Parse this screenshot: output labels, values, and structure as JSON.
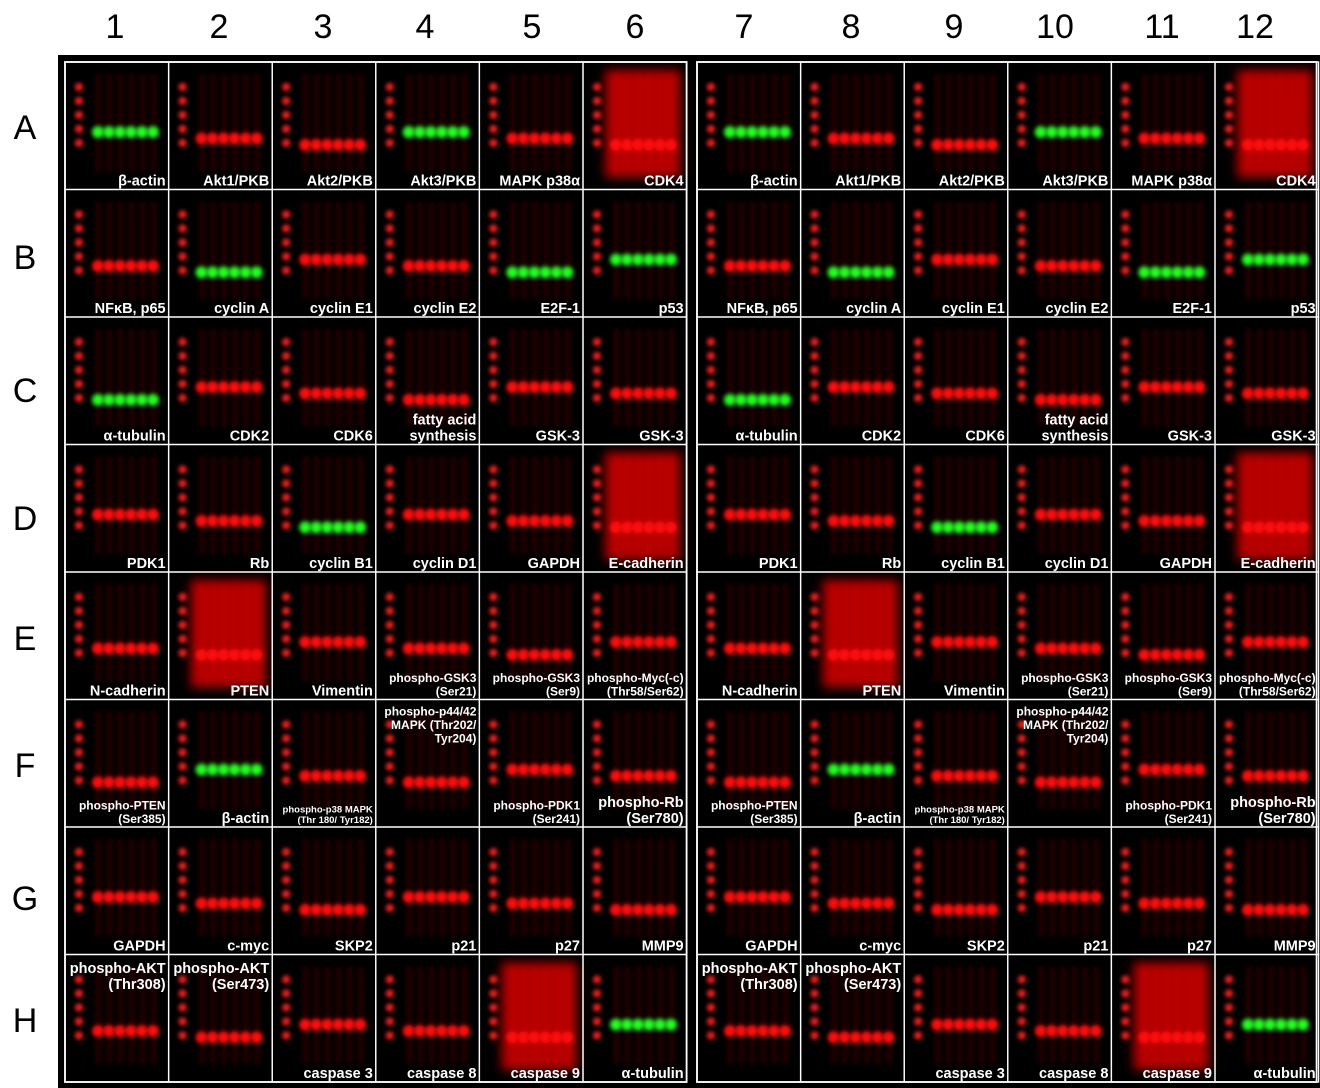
{
  "figure": {
    "columns": [
      "1",
      "2",
      "3",
      "4",
      "5",
      "6",
      "7",
      "8",
      "9",
      "10",
      "11",
      "12"
    ],
    "rows": [
      "A",
      "B",
      "C",
      "D",
      "E",
      "F",
      "G",
      "H"
    ],
    "cells": [
      [
        [
          "β-actin"
        ],
        [
          "Akt1/PKB"
        ],
        [
          "Akt2/PKB"
        ],
        [
          "Akt3/PKB"
        ],
        [
          "MAPK p38α"
        ],
        [
          "CDK4"
        ],
        [
          "β-actin"
        ],
        [
          "Akt1/PKB"
        ],
        [
          "Akt2/PKB"
        ],
        [
          "Akt3/PKB"
        ],
        [
          "MAPK p38α"
        ],
        [
          "CDK4"
        ]
      ],
      [
        [
          "NFκB, p65"
        ],
        [
          "cyclin A"
        ],
        [
          "cyclin E1"
        ],
        [
          "cyclin E2"
        ],
        [
          "E2F-1"
        ],
        [
          "p53"
        ],
        [
          "NFκB, p65"
        ],
        [
          "cyclin A"
        ],
        [
          "cyclin E1"
        ],
        [
          "cyclin E2"
        ],
        [
          "E2F-1"
        ],
        [
          "p53"
        ]
      ],
      [
        [
          "α-tubulin"
        ],
        [
          "CDK2"
        ],
        [
          "CDK6"
        ],
        [
          "fatty acid",
          "synthesis"
        ],
        [
          "GSK-3"
        ],
        [
          "GSK-3"
        ],
        [
          "α-tubulin"
        ],
        [
          "CDK2"
        ],
        [
          "CDK6"
        ],
        [
          "fatty acid",
          "synthesis"
        ],
        [
          "GSK-3"
        ],
        [
          "GSK-3"
        ]
      ],
      [
        [
          "PDK1"
        ],
        [
          "Rb"
        ],
        [
          "cyclin B1"
        ],
        [
          "cyclin D1"
        ],
        [
          "GAPDH"
        ],
        [
          "E-cadherin"
        ],
        [
          "PDK1"
        ],
        [
          "Rb"
        ],
        [
          "cyclin B1"
        ],
        [
          "cyclin D1"
        ],
        [
          "GAPDH"
        ],
        [
          "E-cadherin"
        ]
      ],
      [
        [
          "N-cadherin"
        ],
        [
          "PTEN"
        ],
        [
          "Vimentin"
        ],
        [
          "phospho-GSK3",
          "(Ser21)"
        ],
        [
          "phospho-GSK3",
          "(Ser9)"
        ],
        [
          "phospho-Myc(-c)",
          "(Thr58/Ser62)"
        ],
        [
          "N-cadherin"
        ],
        [
          "PTEN"
        ],
        [
          "Vimentin"
        ],
        [
          "phospho-GSK3",
          "(Ser21)"
        ],
        [
          "phospho-GSK3",
          "(Ser9)"
        ],
        [
          "phospho-Myc(-c)",
          "(Thr58/Ser62)"
        ]
      ],
      [
        [
          "phospho-PTEN",
          "(Ser385)"
        ],
        [
          "β-actin"
        ],
        [
          "phospho-p38 MAPK",
          "(Thr 180/ Tyr182)"
        ],
        [
          "phospho-p44/42",
          "MAPK (Thr202/",
          "Tyr204)"
        ],
        [
          "phospho-PDK1",
          "(Ser241)"
        ],
        [
          "phospho-Rb",
          "(Ser780)"
        ],
        [
          "phospho-PTEN",
          "(Ser385)"
        ],
        [
          "β-actin"
        ],
        [
          "phospho-p38 MAPK",
          "(Thr 180/ Tyr182)"
        ],
        [
          "phospho-p44/42",
          "MAPK (Thr202/",
          "Tyr204)"
        ],
        [
          "phospho-PDK1",
          "(Ser241)"
        ],
        [
          "phospho-Rb",
          "(Ser780)"
        ]
      ],
      [
        [
          "GAPDH"
        ],
        [
          "c-myc"
        ],
        [
          "SKP2"
        ],
        [
          "p21"
        ],
        [
          "p27"
        ],
        [
          "MMP9"
        ],
        [
          "GAPDH"
        ],
        [
          "c-myc"
        ],
        [
          "SKP2"
        ],
        [
          "p21"
        ],
        [
          "p27"
        ],
        [
          "MMP9"
        ]
      ],
      [
        [
          "phospho-AKT",
          "(Thr308)"
        ],
        [
          "phospho-AKT",
          "(Ser473)"
        ],
        [
          "caspase 3"
        ],
        [
          "caspase 8"
        ],
        [
          "caspase 9"
        ],
        [
          "α-tubulin"
        ],
        [
          "phospho-AKT",
          "(Thr308)"
        ],
        [
          "phospho-AKT",
          "(Ser473)"
        ],
        [
          "caspase 3"
        ],
        [
          "caspase 8"
        ],
        [
          "caspase 9"
        ],
        [
          "α-tubulin"
        ]
      ]
    ]
  }
}
